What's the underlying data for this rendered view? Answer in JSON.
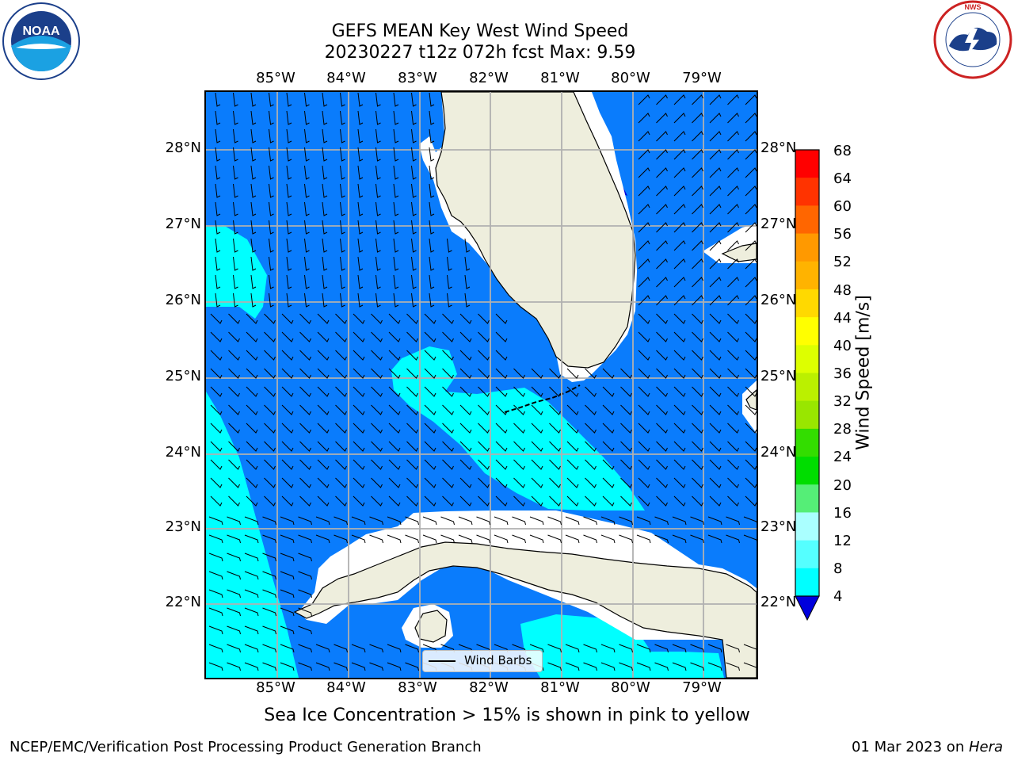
{
  "title": {
    "line1": "GEFS MEAN Key West Wind Speed",
    "line2": "20230227 t12z 072h fcst   Max: 9.59"
  },
  "subtitle": "Sea Ice Concentration > 15% is shown in pink to yellow",
  "footer": {
    "left": "NCEP/EMC/Verification Post Processing Product Generation Branch",
    "right_date": "01 Mar 2023 on ",
    "right_machine": "Hera"
  },
  "logos": {
    "left": "NOAA",
    "right": "NATIONAL WEATHER SERVICE"
  },
  "map": {
    "lon_labels": [
      "85°W",
      "84°W",
      "83°W",
      "82°W",
      "81°W",
      "80°W",
      "79°W"
    ],
    "lat_labels": [
      "28°N",
      "27°N",
      "26°N",
      "25°N",
      "24°N",
      "23°N",
      "22°N"
    ],
    "legend_label": "Wind Barbs",
    "region": "Florida Straits / South Florida / Cuba",
    "colors": {
      "ocean_4_8": "#0a7cfc",
      "ocean_8_12": "#00ffff",
      "land": "#eeeedd",
      "grid": "#b0b0b0"
    }
  },
  "colorbar": {
    "label": "Wind Speed [m/s]",
    "ticks": [
      "68",
      "64",
      "60",
      "56",
      "52",
      "48",
      "44",
      "40",
      "36",
      "32",
      "28",
      "24",
      "20",
      "16",
      "12",
      "8",
      "4"
    ],
    "colors_top_to_bottom": [
      "#ff0000",
      "#ff3300",
      "#ff6600",
      "#ff9900",
      "#ffb300",
      "#ffd900",
      "#ffff00",
      "#ddff00",
      "#bbf000",
      "#99e600",
      "#33dd00",
      "#00dd00",
      "#55ee77",
      "#aaffff",
      "#55ffff",
      "#00ffff",
      "#0a7cfc"
    ],
    "extend_color": "#0000dd"
  }
}
